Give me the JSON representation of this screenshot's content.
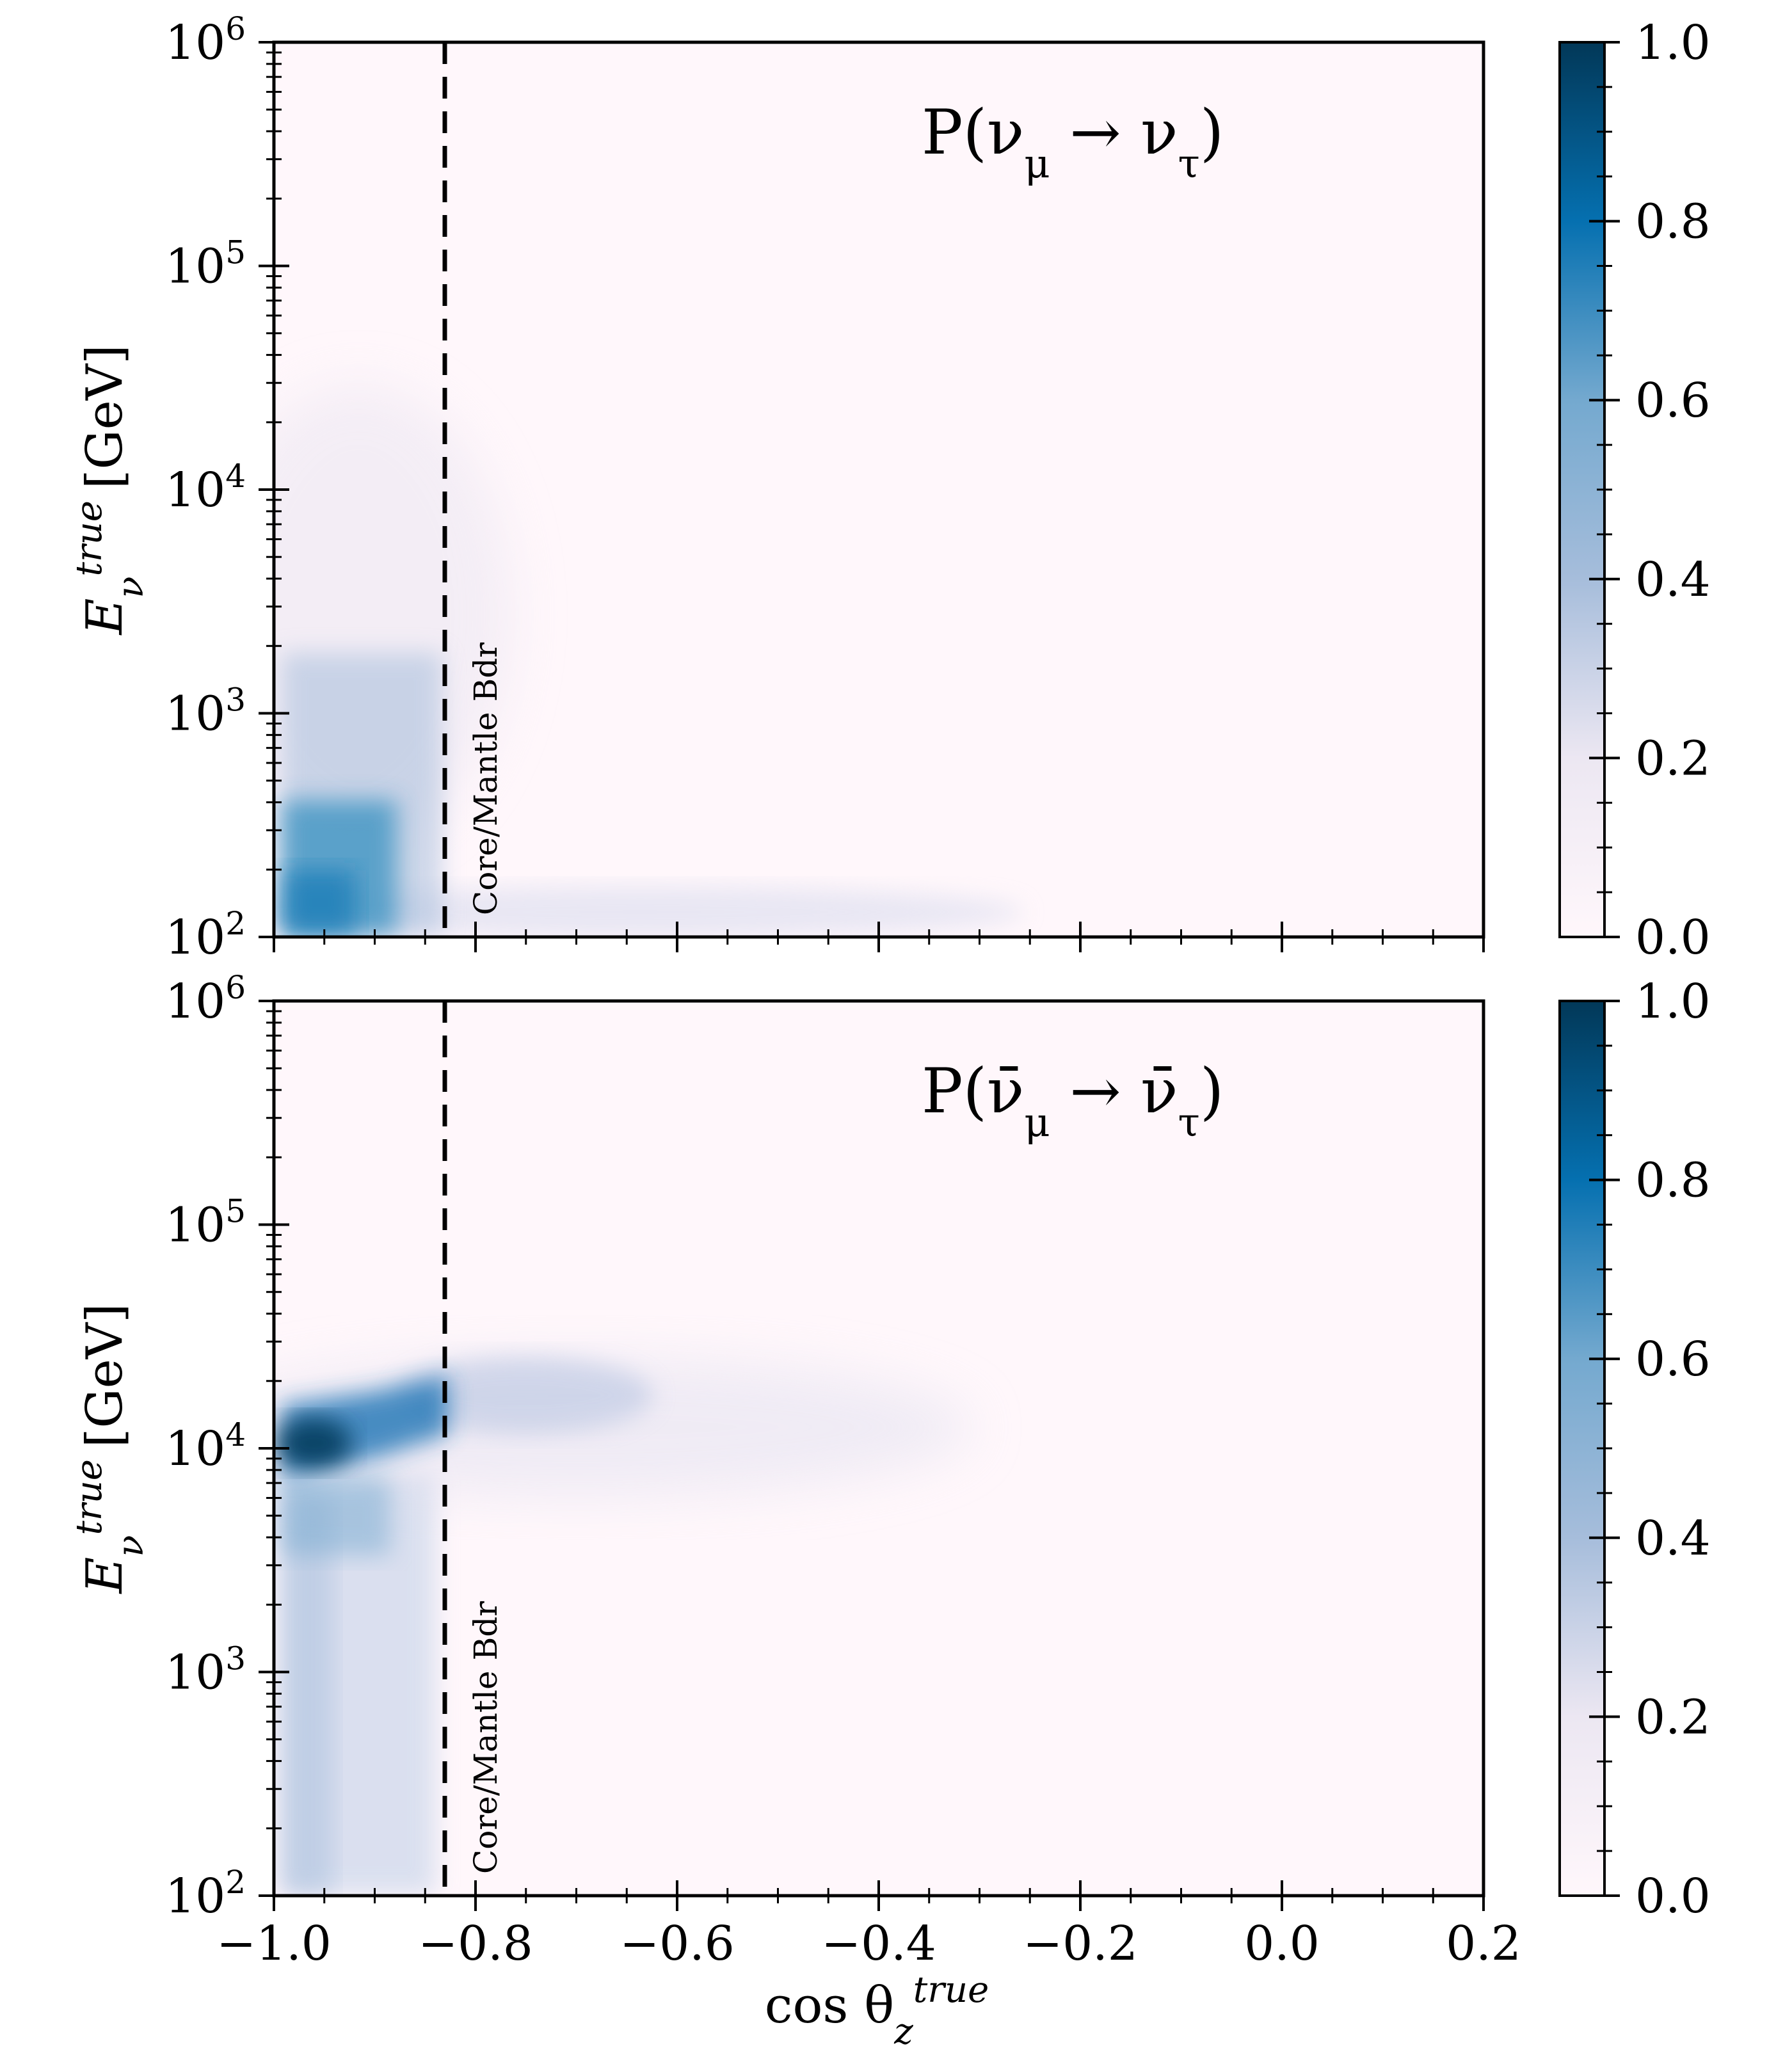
{
  "chart_data": [
    {
      "type": "heatmap",
      "title": "P(ν_μ → ν_τ)",
      "xlabel": "cos θ_z^true",
      "ylabel": "E_ν^true [GeV]",
      "xlim": [
        -1.0,
        0.2
      ],
      "ylim": [
        100,
        1000000
      ],
      "y_scale": "log",
      "colorbar": {
        "range": [
          0.0,
          1.0
        ],
        "ticks": [
          "0.0",
          "0.2",
          "0.4",
          "0.6",
          "0.8",
          "1.0"
        ],
        "colormap": "PuBu"
      },
      "vline": {
        "x": -0.83,
        "label": "Core/Mantle Bdr",
        "style": "dashed"
      },
      "regions": [
        {
          "x": [
            -0.99,
            -0.9
          ],
          "y": [
            100,
            300
          ],
          "value": 0.55
        },
        {
          "x": [
            -0.9,
            -0.83
          ],
          "y": [
            100,
            200
          ],
          "value": 0.35
        },
        {
          "x": [
            -0.99,
            -0.83
          ],
          "y": [
            300,
            1500
          ],
          "value": 0.25
        },
        {
          "x": [
            -0.99,
            -0.83
          ],
          "y": [
            1500,
            10000
          ],
          "value": 0.1
        },
        {
          "x": [
            -0.83,
            -0.5
          ],
          "y": [
            100,
            200
          ],
          "value": 0.1
        }
      ]
    },
    {
      "type": "heatmap",
      "title": "P(ν̄_μ → ν̄_τ)",
      "xlabel": "cos θ_z^true",
      "ylabel": "E_ν^true [GeV]",
      "xlim": [
        -1.0,
        0.2
      ],
      "ylim": [
        100,
        1000000
      ],
      "y_scale": "log",
      "colorbar": {
        "range": [
          0.0,
          1.0
        ],
        "ticks": [
          "0.0",
          "0.2",
          "0.4",
          "0.6",
          "0.8",
          "1.0"
        ],
        "colormap": "PuBu"
      },
      "vline": {
        "x": -0.83,
        "label": "Core/Mantle Bdr",
        "style": "dashed"
      },
      "regions": [
        {
          "x": [
            -0.99,
            -0.83
          ],
          "y": [
            9000,
            14000
          ],
          "value": 0.9
        },
        {
          "x": [
            -0.99,
            -0.83
          ],
          "y": [
            100,
            6000
          ],
          "value": 0.25
        },
        {
          "x": [
            -0.83,
            -0.5
          ],
          "y": [
            10000,
            20000
          ],
          "value": 0.2
        },
        {
          "x": [
            -0.5,
            -0.3
          ],
          "y": [
            9000,
            15000
          ],
          "value": 0.05
        }
      ]
    }
  ],
  "axes": {
    "x_ticks": [
      "−1.0",
      "−0.8",
      "−0.6",
      "−0.4",
      "−0.2",
      "0.0",
      "0.2"
    ],
    "y_tick_base": "10",
    "y_tick_exponents": [
      "2",
      "3",
      "4",
      "5",
      "6"
    ],
    "xlabel_main": "cos θ",
    "xlabel_sub": "z",
    "xlabel_sup": "true",
    "ylabel_main": "E",
    "ylabel_sub": "ν",
    "ylabel_sup": "true",
    "ylabel_unit": "[GeV]"
  },
  "panels": [
    {
      "title_main": "P(ν",
      "title_sub1": "μ",
      "title_arrow": " → ν",
      "title_sub2": "τ",
      "title_close": ")"
    },
    {
      "title_main": "P(ν̄",
      "title_sub1": "μ",
      "title_arrow": " → ν̄",
      "title_sub2": "τ",
      "title_close": ")"
    }
  ],
  "colors": {
    "background": "#fff7fb",
    "low": "#ece7f2",
    "mid": "#74a9cf",
    "high": "#0570b0",
    "max": "#023858"
  }
}
